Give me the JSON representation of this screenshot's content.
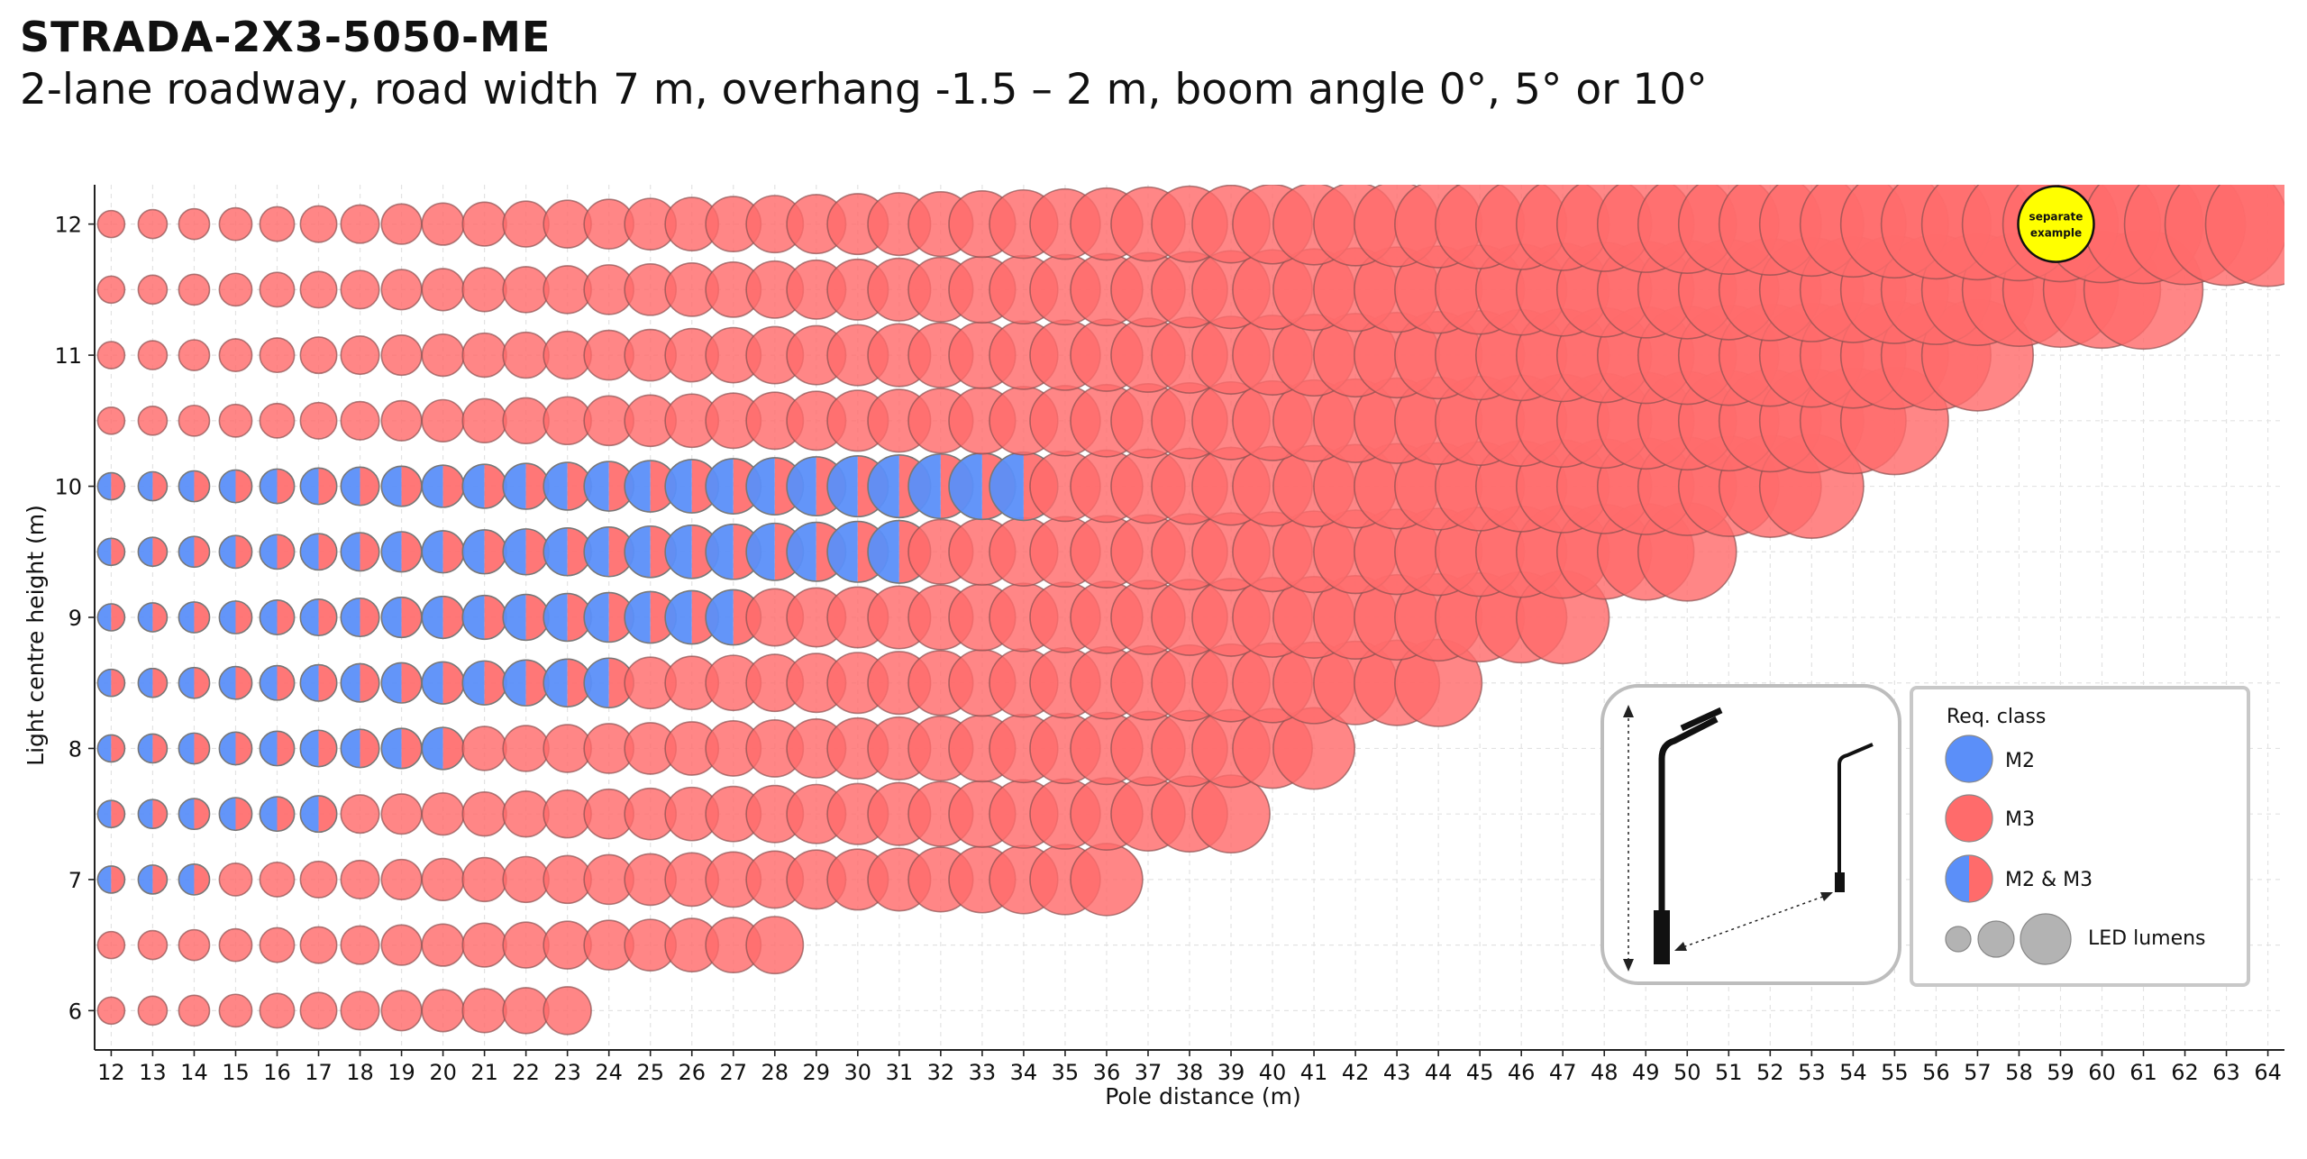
{
  "header": {
    "title": "STRADA-2X3-5050-ME",
    "subtitle": "2-lane roadway, road width 7 m, overhang -1.5 – 2 m, boom angle 0°, 5° or 10°"
  },
  "chart_data": {
    "type": "scatter",
    "title": "STRADA-2X3-5050-ME",
    "subtitle": "2-lane roadway, road width 7 m, overhang -1.5 – 2 m, boom angle 0°, 5° or 10°",
    "xlabel": "Pole distance (m)",
    "ylabel": "Light centre height (m)",
    "xlim": [
      11.6,
      64.4
    ],
    "ylim": [
      5.7,
      12.3
    ],
    "x_ticks": [
      12,
      13,
      14,
      15,
      16,
      17,
      18,
      19,
      20,
      21,
      22,
      23,
      24,
      25,
      26,
      27,
      28,
      29,
      30,
      31,
      32,
      33,
      34,
      35,
      36,
      37,
      38,
      39,
      40,
      41,
      42,
      43,
      44,
      45,
      46,
      47,
      48,
      49,
      50,
      51,
      52,
      53,
      54,
      55,
      56,
      57,
      58,
      59,
      60,
      61,
      62,
      63,
      64
    ],
    "y_ticks": [
      6,
      7,
      8,
      9,
      10,
      11,
      12
    ],
    "grid": true,
    "colors": {
      "M2": "#5b8ff9",
      "M3": "#ff6b6b",
      "lumens": "#b3b3b3",
      "badge": "#ffff00"
    },
    "rows": [
      {
        "height": 6.0,
        "m2_m3_to": null,
        "max_distance": 23
      },
      {
        "height": 6.5,
        "m2_m3_to": null,
        "max_distance": 28
      },
      {
        "height": 7.0,
        "m2_m3_to": 14,
        "max_distance": 36
      },
      {
        "height": 7.5,
        "m2_m3_to": 17,
        "max_distance": 39
      },
      {
        "height": 8.0,
        "m2_m3_to": 20,
        "max_distance": 41
      },
      {
        "height": 8.5,
        "m2_m3_to": 24,
        "max_distance": 44
      },
      {
        "height": 9.0,
        "m2_m3_to": 27,
        "max_distance": 47
      },
      {
        "height": 9.5,
        "m2_m3_to": 31,
        "max_distance": 50
      },
      {
        "height": 10.0,
        "m2_m3_to": 34,
        "max_distance": 53
      },
      {
        "height": 10.5,
        "m2_m3_to": null,
        "max_distance": 55
      },
      {
        "height": 11.0,
        "m2_m3_to": null,
        "max_distance": 57
      },
      {
        "height": 11.5,
        "m2_m3_to": null,
        "max_distance": 61
      },
      {
        "height": 12.0,
        "m2_m3_to": null,
        "max_distance": 64
      }
    ],
    "size_encoding": "LED lumens (bubble size grows with pole distance)",
    "annotation": {
      "x": 59,
      "y": 12.0,
      "text_line1": "separate",
      "text_line2": "example"
    },
    "legend": {
      "title": "Req. class",
      "position": "bottom-right",
      "items": [
        {
          "label": "M2",
          "kind": "M2"
        },
        {
          "label": "M3",
          "kind": "M3"
        },
        {
          "label": "M2 & M3",
          "kind": "M2M3"
        },
        {
          "label": "LED lumens",
          "kind": "lumens"
        }
      ]
    }
  }
}
